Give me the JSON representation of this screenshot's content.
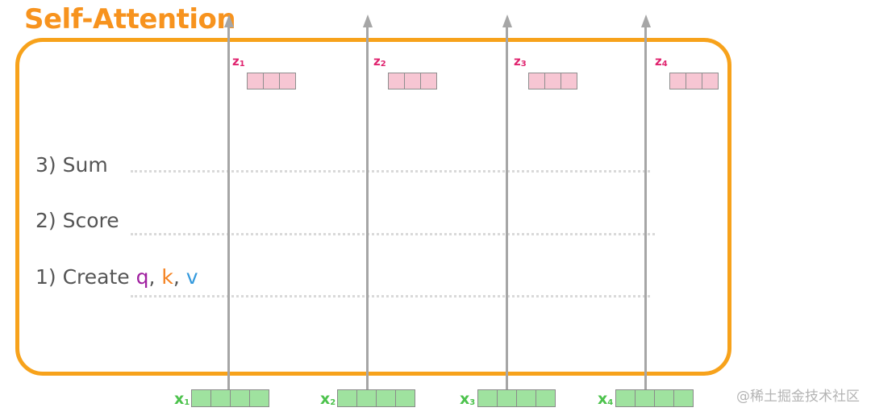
{
  "title": "Self-Attention",
  "steps": {
    "sum": "3) Sum",
    "score": "2) Score",
    "create_prefix": "1) Create ",
    "q": "q",
    "comma1": ", ",
    "k": "k",
    "comma2": ", ",
    "v": "v"
  },
  "outputs": [
    {
      "label": "z",
      "sub": "1"
    },
    {
      "label": "z",
      "sub": "2"
    },
    {
      "label": "z",
      "sub": "3"
    },
    {
      "label": "z",
      "sub": "4"
    }
  ],
  "inputs": [
    {
      "label": "x",
      "sub": "1"
    },
    {
      "label": "x",
      "sub": "2"
    },
    {
      "label": "x",
      "sub": "3"
    },
    {
      "label": "x",
      "sub": "4"
    }
  ],
  "watermark": "@稀土掘金技术社区",
  "colors": {
    "title": "#f7931e",
    "frame": "#f7a21b",
    "q": "#a020a0",
    "k": "#f58220",
    "v": "#3399dd",
    "z_vector": "#f7c6d3",
    "x_vector": "#9fe29f",
    "arrow": "#a6a6a6"
  }
}
